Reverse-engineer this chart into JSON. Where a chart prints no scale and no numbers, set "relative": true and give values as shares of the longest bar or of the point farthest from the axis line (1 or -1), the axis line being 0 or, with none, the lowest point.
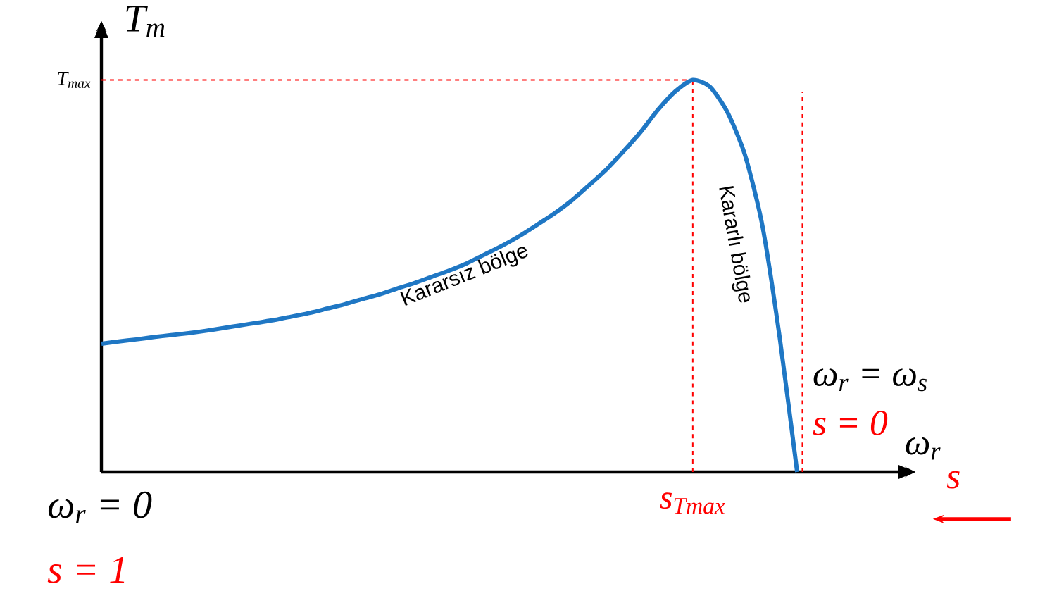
{
  "chart_data": {
    "type": "line",
    "relative": true,
    "xlabel": "ω$_{r}$",
    "ylabel": "T$_{m}$",
    "categories": [
      null,
      null,
      null,
      null,
      null,
      null,
      null,
      null,
      null,
      null,
      null,
      null,
      null,
      null,
      null,
      null,
      null,
      null,
      null,
      null,
      null,
      null,
      null,
      null,
      null,
      null,
      null,
      null,
      null,
      null,
      null,
      null,
      null,
      null,
      null,
      null,
      null,
      null,
      null,
      null,
      null
    ],
    "series": [
      {
        "color": "#1f77c4",
        "values": [
          0.327,
          0.333,
          0.338,
          0.344,
          0.349,
          0.354,
          0.36,
          0.367,
          0.374,
          0.381,
          0.388,
          0.397,
          0.406,
          0.417,
          0.428,
          0.441,
          0.453,
          0.468,
          0.482,
          0.498,
          0.514,
          0.532,
          0.554,
          0.576,
          0.601,
          0.629,
          0.658,
          0.691,
          0.73,
          0.77,
          0.817,
          0.867,
          0.924,
          0.971,
          1,
          0.982,
          0.917,
          0.809,
          0.629,
          0.342,
          0
        ]
      }
    ],
    "ref_lines": [
      {
        "axis": "y",
        "value": 1,
        "label": "T$_{max}$",
        "color": "#ff0000",
        "line_style": "dashed"
      }
    ],
    "annotations": [
      "Kararsız bölge",
      "Kararlı bölge",
      "ω$_{r}$ = 0",
      "s = 1",
      "ω$_{r}$ = ω$_{s}$",
      "s = 0",
      "s",
      "s$_{Tmax}$"
    ],
    "line_style": "solid",
    "marker": "none"
  }
}
